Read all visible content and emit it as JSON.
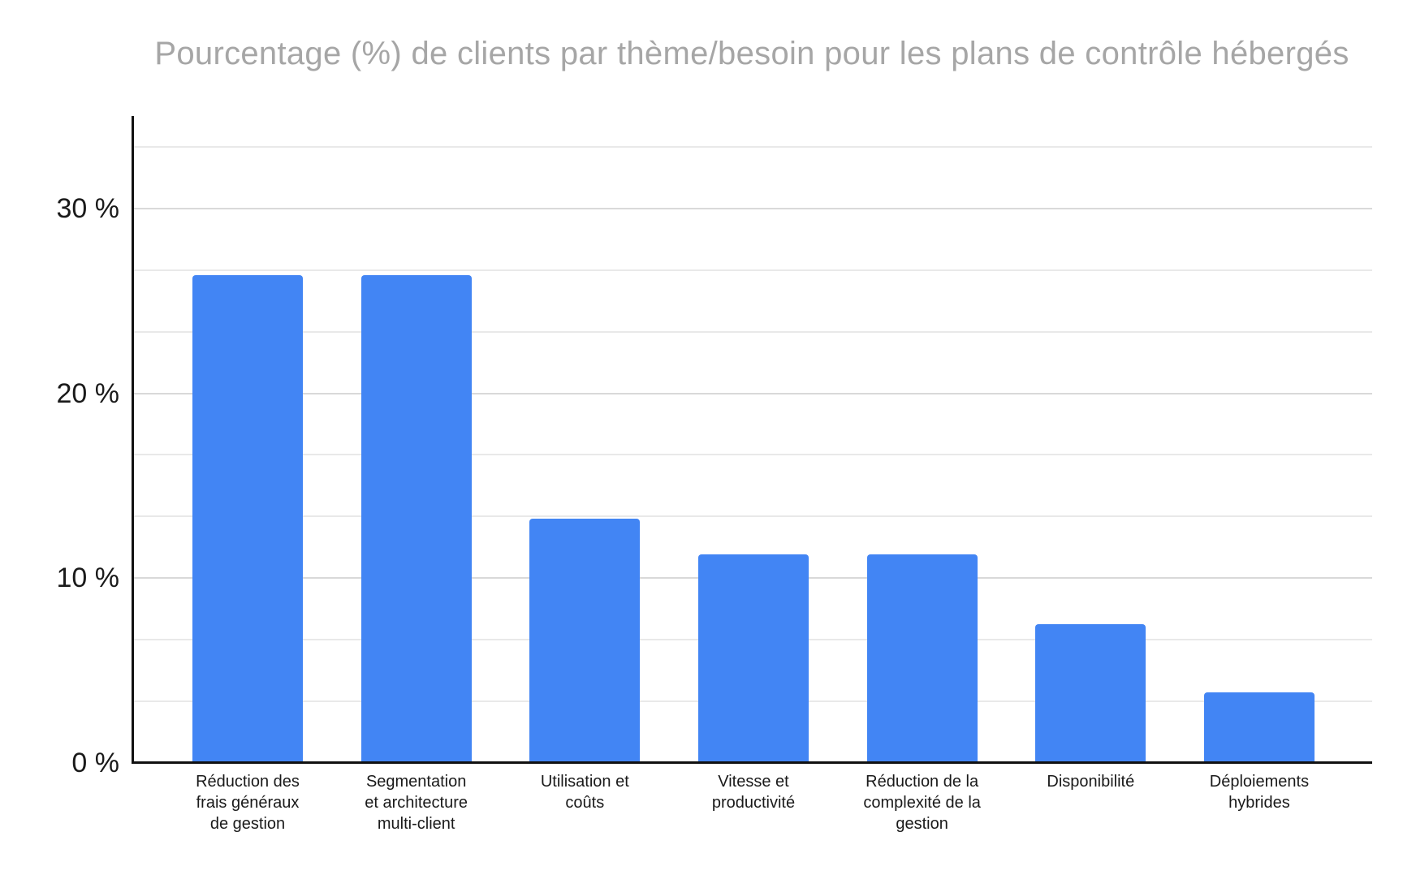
{
  "chart_data": {
    "type": "bar",
    "title": "Pourcentage (%) de clients par thème/besoin pour les plans de contrôle hébergés",
    "categories": [
      "Réduction des\nfrais généraux\nde gestion",
      "Segmentation\net architecture\nmulti-client",
      "Utilisation et\ncoûts",
      "Vitesse et\nproductivité",
      "Réduction de la\ncomplexité de la\ngestion",
      "Disponibilité",
      "Déploiements\nhybrides"
    ],
    "values": [
      26.4,
      26.4,
      13.2,
      11.3,
      11.3,
      7.5,
      3.8
    ],
    "unit": "%",
    "xlabel": "",
    "ylabel": "",
    "ylim": [
      0,
      35
    ],
    "yticks": [
      0,
      10,
      20,
      30
    ],
    "ytick_labels": [
      "0 %",
      "10 %",
      "20 %",
      "30 %"
    ],
    "minor_gridline_step_pct": 3.3333,
    "grid": "horizontal-major-and-minor",
    "legend": "none",
    "orientation": "vertical-bars"
  },
  "colors": {
    "bar": "#4285F4",
    "title_text": "#A6A6A6",
    "axis_text": "#1A1A1A",
    "axis_line": "#111111",
    "gridline_major": "#D9D9D9",
    "gridline_minor": "#E9E9E9",
    "background": "#FFFFFF"
  }
}
